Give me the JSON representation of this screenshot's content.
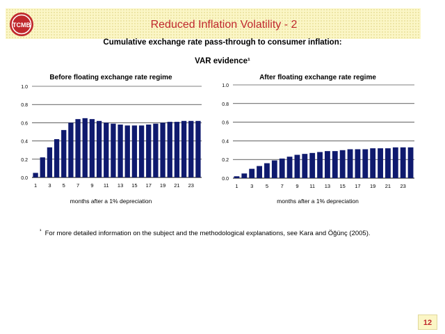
{
  "header": {
    "title": "Reduced Inflation Volatility - 2"
  },
  "logo": {
    "text": "TCMB",
    "colors": {
      "red": "#c0282d"
    }
  },
  "subtitle": "Cumulative exchange rate pass-through to consumer inflation:",
  "subtitle2": "VAR evidence¹",
  "footnote": {
    "marker": "¹",
    "text": "For more detailed information on the subject and the methodological explanations, see Kara and Öğünç (2005)."
  },
  "page_number": "12",
  "colors": {
    "bar": "#0f1a6e",
    "title": "#c0282d",
    "band": "#fbf6c6"
  },
  "chart_data": [
    {
      "type": "bar",
      "title": "Before floating exchange rate regime",
      "xlabel": "months after a 1% depreciation",
      "ylabel": "",
      "ylim": [
        0,
        1.0
      ],
      "yticks": [
        "0.0",
        "0.2",
        "0.4",
        "0.6",
        "0.8",
        "1.0"
      ],
      "xticks": [
        "1",
        "3",
        "5",
        "7",
        "9",
        "11",
        "13",
        "15",
        "17",
        "19",
        "21",
        "23"
      ],
      "categories": [
        1,
        2,
        3,
        4,
        5,
        6,
        7,
        8,
        9,
        10,
        11,
        12,
        13,
        14,
        15,
        16,
        17,
        18,
        19,
        20,
        21,
        22,
        23,
        24
      ],
      "values": [
        0.05,
        0.22,
        0.33,
        0.42,
        0.52,
        0.6,
        0.64,
        0.65,
        0.64,
        0.62,
        0.6,
        0.59,
        0.58,
        0.57,
        0.57,
        0.57,
        0.58,
        0.59,
        0.6,
        0.61,
        0.61,
        0.62,
        0.62,
        0.62
      ]
    },
    {
      "type": "bar",
      "title": "After floating exchange rate regime",
      "xlabel": "months after a 1% depreciation",
      "ylabel": "",
      "ylim": [
        0,
        1.0
      ],
      "yticks": [
        "0.0",
        "0.2",
        "0.4",
        "0.6",
        "0.8",
        "1.0"
      ],
      "xticks": [
        "1",
        "3",
        "5",
        "7",
        "9",
        "11",
        "13",
        "15",
        "17",
        "19",
        "21",
        "23"
      ],
      "categories": [
        1,
        2,
        3,
        4,
        5,
        6,
        7,
        8,
        9,
        10,
        11,
        12,
        13,
        14,
        15,
        16,
        17,
        18,
        19,
        20,
        21,
        22,
        23,
        24
      ],
      "values": [
        0.02,
        0.05,
        0.1,
        0.13,
        0.16,
        0.19,
        0.21,
        0.23,
        0.25,
        0.26,
        0.27,
        0.28,
        0.29,
        0.29,
        0.3,
        0.31,
        0.31,
        0.31,
        0.32,
        0.32,
        0.32,
        0.33,
        0.33,
        0.33
      ]
    }
  ]
}
